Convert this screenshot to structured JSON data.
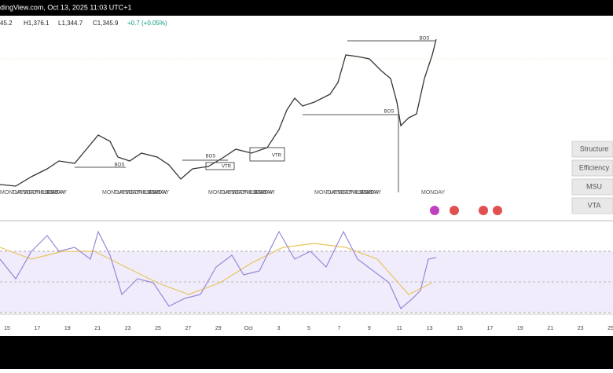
{
  "header": {
    "source": "dingView.com, Oct 13, 2025 11:03 UTC+1"
  },
  "ohlc": [
    "45.2",
    "H1,376.1",
    "L1,344.7",
    "C1,345.9",
    "+0.7 (+0.05%)"
  ],
  "bos_labels": [
    "BOS",
    "BOS",
    "BOS",
    "BOS"
  ],
  "vtr_labels": [
    "VTR",
    "VTR"
  ],
  "day_labels": [
    [
      "MONDAY",
      "TUESDAY",
      "WEDNESDAY",
      "THURSDAY",
      "FRIDAY"
    ],
    [
      "MONDAY",
      "TUESDAY",
      "WEDNESDAY",
      "THURSDAY",
      "FRIDAY"
    ],
    [
      "MONDAY",
      "TUESDAY",
      "WEDNESDAY",
      "THURSDAY",
      "FRIDAY"
    ],
    [
      "MONDAY",
      "TUESDAY",
      "WEDNESDAY",
      "THURSDAY",
      "FRIDAY"
    ],
    [
      "MONDAY"
    ]
  ],
  "panel_buttons": [
    "Structure",
    "Efficiency",
    "MSU",
    "VTA"
  ],
  "time_axis": [
    "15",
    "17",
    "19",
    "21",
    "23",
    "25",
    "27",
    "29",
    "Oct",
    "3",
    "5",
    "7",
    "9",
    "11",
    "13",
    "15",
    "17",
    "19",
    "21",
    "23",
    "25"
  ]
}
